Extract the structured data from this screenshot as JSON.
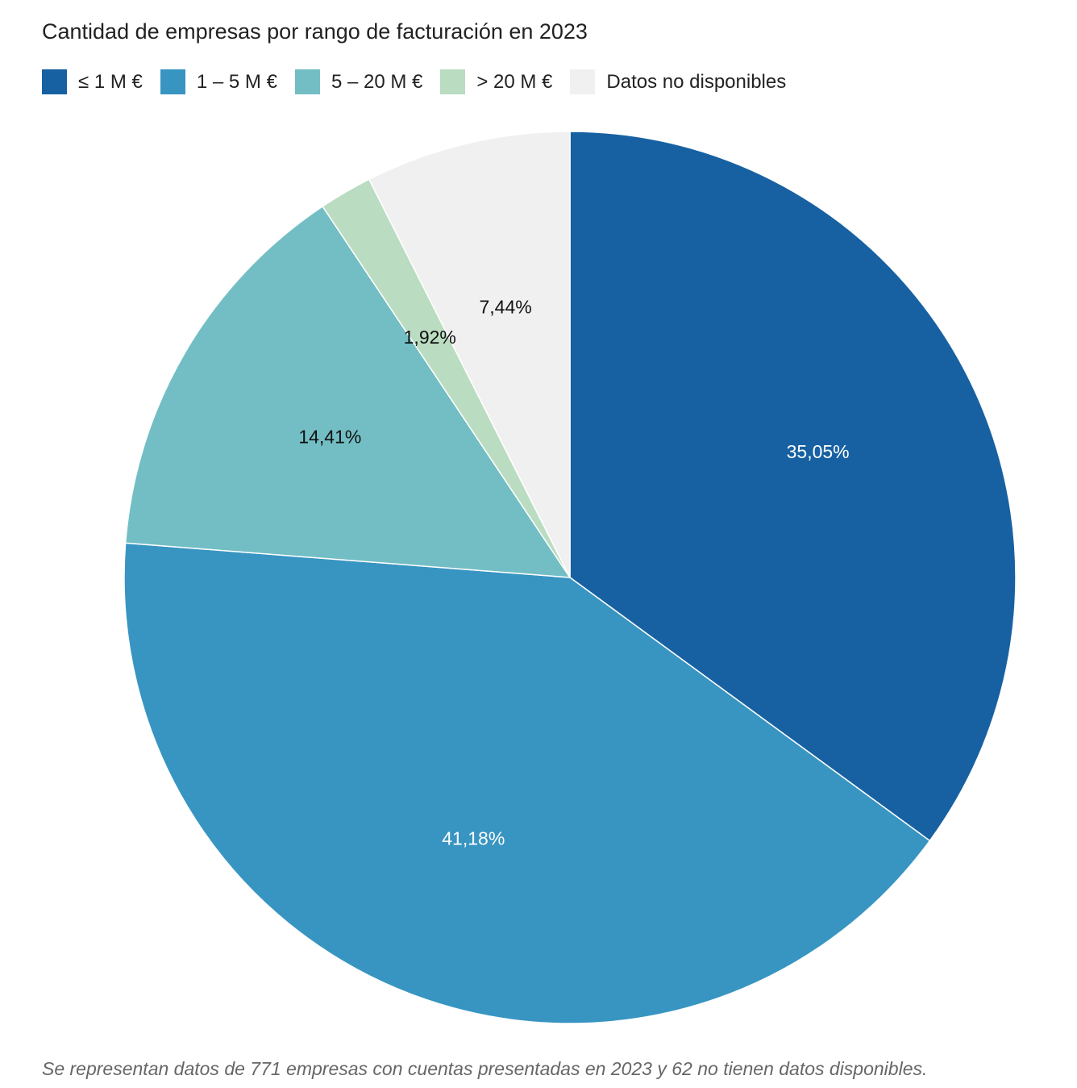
{
  "chart_data": {
    "type": "pie",
    "title": "Cantidad de empresas por rango de facturación en 2023",
    "categories": [
      "≤ 1 M €",
      "1 – 5 M €",
      "5 – 20 M €",
      "> 20 M €",
      "Datos no disponibles"
    ],
    "values": [
      35.05,
      41.18,
      14.41,
      1.92,
      7.44
    ],
    "labels": [
      "35,05%",
      "41,18%",
      "14,41%",
      "1,92%",
      "7,44%"
    ],
    "colors": [
      "#1761a2",
      "#3895c2",
      "#72bec4",
      "#badcc1",
      "#f0f0f0"
    ],
    "label_colors": [
      "#ffffff",
      "#ffffff",
      "#111111",
      "#111111",
      "#111111"
    ],
    "legend_position": "top-left",
    "start": "top, clockwise"
  },
  "note": "Se representan datos de 771 empresas con cuentas presentadas en 2023 y 62 no tienen datos disponibles."
}
